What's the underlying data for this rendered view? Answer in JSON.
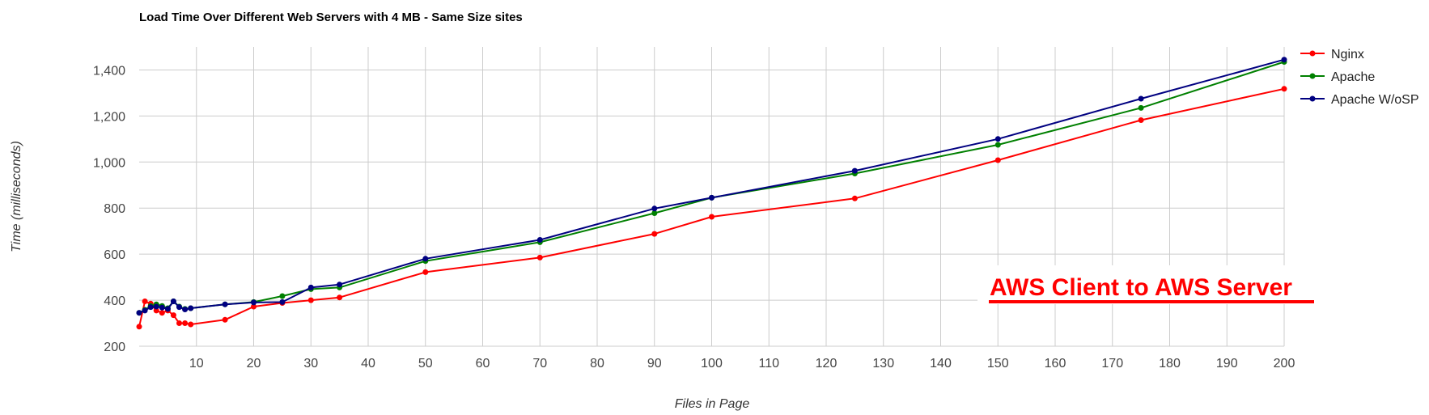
{
  "chart_data": {
    "type": "line",
    "title": "Load Time Over Different Web Servers with 4 MB - Same Size sites",
    "xlabel": "Files in Page",
    "ylabel": "Time (milliseconds)",
    "xlim": [
      0,
      200
    ],
    "ylim": [
      200,
      1500
    ],
    "xticks": [
      10,
      20,
      30,
      40,
      50,
      60,
      70,
      80,
      90,
      100,
      110,
      120,
      130,
      140,
      150,
      160,
      170,
      180,
      190,
      200
    ],
    "yticks": [
      200,
      400,
      600,
      800,
      1000,
      1200,
      1400
    ],
    "xtick_labels": [
      "10",
      "20",
      "30",
      "40",
      "50",
      "60",
      "70",
      "80",
      "90",
      "100",
      "110",
      "120",
      "130",
      "140",
      "150",
      "160",
      "170",
      "180",
      "190",
      "200"
    ],
    "ytick_labels": [
      "200",
      "400",
      "600",
      "800",
      "1,000",
      "1,200",
      "1,400"
    ],
    "grid": true,
    "legend_position": "top-right",
    "annotation": "AWS Client to AWS Server",
    "annotation_color": "#ff0000",
    "series": [
      {
        "name": "Nginx",
        "color": "#ff0000",
        "points": [
          [
            0,
            285
          ],
          [
            1,
            395
          ],
          [
            2,
            385
          ],
          [
            3,
            355
          ],
          [
            4,
            345
          ],
          [
            5,
            355
          ],
          [
            6,
            335
          ],
          [
            7,
            300
          ],
          [
            8,
            300
          ],
          [
            9,
            295
          ],
          [
            15,
            315
          ],
          [
            20,
            372
          ],
          [
            25,
            388
          ],
          [
            30,
            400
          ],
          [
            35,
            412
          ],
          [
            50,
            522
          ],
          [
            70,
            585
          ],
          [
            90,
            688
          ],
          [
            100,
            762
          ],
          [
            125,
            842
          ],
          [
            150,
            1008
          ],
          [
            175,
            1182
          ],
          [
            200,
            1318
          ]
        ]
      },
      {
        "name": "Apache",
        "color": "#008000",
        "points": [
          [
            0,
            345
          ],
          [
            1,
            358
          ],
          [
            2,
            375
          ],
          [
            3,
            382
          ],
          [
            4,
            375
          ],
          [
            5,
            365
          ],
          [
            6,
            395
          ],
          [
            7,
            372
          ],
          [
            8,
            362
          ],
          [
            9,
            365
          ],
          [
            15,
            382
          ],
          [
            20,
            392
          ],
          [
            25,
            418
          ],
          [
            30,
            448
          ],
          [
            35,
            455
          ],
          [
            50,
            570
          ],
          [
            70,
            652
          ],
          [
            90,
            778
          ],
          [
            100,
            845
          ],
          [
            125,
            950
          ],
          [
            150,
            1075
          ],
          [
            175,
            1235
          ],
          [
            200,
            1435
          ]
        ]
      },
      {
        "name": "Apache W/oSP",
        "color": "#000080",
        "points": [
          [
            0,
            345
          ],
          [
            1,
            355
          ],
          [
            2,
            370
          ],
          [
            3,
            372
          ],
          [
            4,
            368
          ],
          [
            5,
            362
          ],
          [
            6,
            395
          ],
          [
            7,
            370
          ],
          [
            8,
            360
          ],
          [
            9,
            365
          ],
          [
            15,
            382
          ],
          [
            20,
            390
          ],
          [
            25,
            392
          ],
          [
            30,
            455
          ],
          [
            35,
            468
          ],
          [
            50,
            580
          ],
          [
            70,
            662
          ],
          [
            90,
            798
          ],
          [
            100,
            845
          ],
          [
            125,
            962
          ],
          [
            150,
            1100
          ],
          [
            175,
            1275
          ],
          [
            200,
            1445
          ]
        ]
      }
    ]
  }
}
